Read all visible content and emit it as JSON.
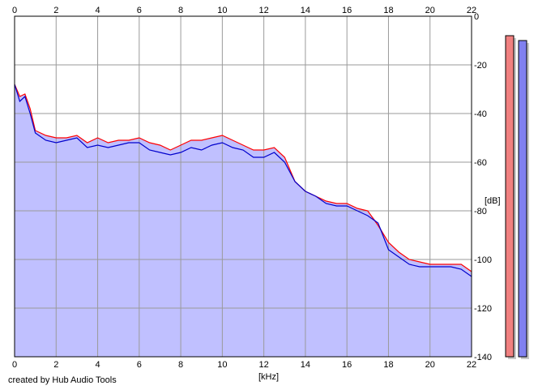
{
  "credit": "created by Hub Audio Tools",
  "chart_data": {
    "type": "line",
    "xlabel": "[kHz]",
    "ylabel": "[dB]",
    "xlim": [
      0,
      22
    ],
    "ylim": [
      -140,
      0
    ],
    "x_ticks": [
      0,
      2,
      4,
      6,
      8,
      10,
      12,
      14,
      16,
      18,
      20,
      22
    ],
    "y_ticks": [
      0,
      -20,
      -40,
      -60,
      -80,
      -100,
      -120,
      -140
    ],
    "grid": true,
    "colors": {
      "red": "#ff0000",
      "blue": "#0000cc",
      "fill": "#c0c0ff",
      "meter_left": "#f08080",
      "meter_right": "#8080f0"
    },
    "x": [
      0.0,
      0.25,
      0.5,
      0.75,
      1.0,
      1.5,
      2.0,
      2.5,
      3.0,
      3.5,
      4.0,
      4.5,
      5.0,
      5.5,
      6.0,
      6.5,
      7.0,
      7.5,
      8.0,
      8.5,
      9.0,
      9.5,
      10.0,
      10.5,
      11.0,
      11.5,
      12.0,
      12.5,
      13.0,
      13.5,
      14.0,
      14.5,
      15.0,
      15.5,
      16.0,
      16.5,
      17.0,
      17.5,
      18.0,
      18.5,
      19.0,
      19.5,
      20.0,
      20.5,
      21.0,
      21.5,
      22.0
    ],
    "series": [
      {
        "color": "red",
        "values": [
          -28,
          -33,
          -32,
          -38,
          -47,
          -49,
          -50,
          -50,
          -49,
          -52,
          -50,
          -52,
          -51,
          -51,
          -50,
          -52,
          -53,
          -55,
          -53,
          -51,
          -51,
          -50,
          -49,
          -51,
          -53,
          -55,
          -55,
          -54,
          -58,
          -68,
          -72,
          -74,
          -76,
          -77,
          -77,
          -79,
          -80,
          -86,
          -93,
          -97,
          -100,
          -101,
          -102,
          -102,
          -102,
          -102,
          -105
        ]
      },
      {
        "color": "blue",
        "values": [
          -28,
          -35,
          -33,
          -40,
          -48,
          -51,
          -52,
          -51,
          -50,
          -54,
          -53,
          -54,
          -53,
          -52,
          -52,
          -55,
          -56,
          -57,
          -56,
          -54,
          -55,
          -53,
          -52,
          -54,
          -55,
          -58,
          -58,
          -56,
          -60,
          -68,
          -72,
          -74,
          -77,
          -78,
          -78,
          -80,
          -82,
          -85,
          -96,
          -99,
          -102,
          -103,
          -103,
          -103,
          -103,
          -104,
          -107
        ]
      }
    ],
    "meters": [
      {
        "color": "meter_left",
        "value": -8
      },
      {
        "color": "meter_right",
        "value": -10
      }
    ]
  }
}
